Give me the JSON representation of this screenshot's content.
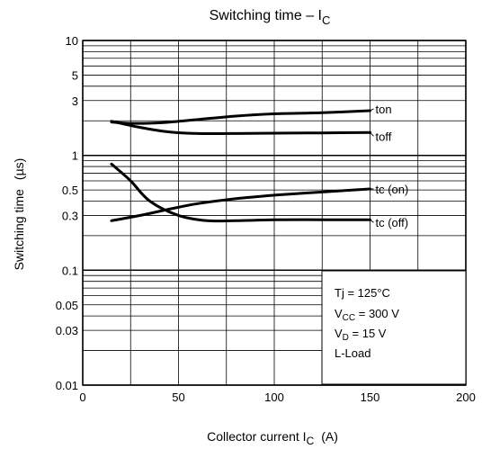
{
  "chart_data": {
    "type": "line",
    "title": {
      "main": "Switching time – I",
      "sub": "C"
    },
    "xlabel": {
      "main": "Collector current   I",
      "sub": "C",
      "unit": "(A)"
    },
    "ylabel": {
      "main": "Switching time",
      "unit": "(µs)"
    },
    "xlim": [
      0,
      200
    ],
    "ylim": [
      0.01,
      10
    ],
    "yscale": "log",
    "grid": true,
    "x_ticks": [
      {
        "value": 0,
        "label": "0"
      },
      {
        "value": 50,
        "label": "50"
      },
      {
        "value": 100,
        "label": "100"
      },
      {
        "value": 150,
        "label": "150"
      },
      {
        "value": 200,
        "label": "200"
      }
    ],
    "y_ticks": [
      {
        "value": 10,
        "label": "10"
      },
      {
        "value": 5,
        "label": "5"
      },
      {
        "value": 3,
        "label": "3"
      },
      {
        "value": 1,
        "label": "1"
      },
      {
        "value": 0.5,
        "label": "0.5"
      },
      {
        "value": 0.3,
        "label": "0.3"
      },
      {
        "value": 0.1,
        "label": "0.1"
      },
      {
        "value": 0.05,
        "label": "0.05"
      },
      {
        "value": 0.03,
        "label": "0.03"
      },
      {
        "value": 0.01,
        "label": "0.01"
      }
    ],
    "series": [
      {
        "name": "ton",
        "x": [
          15,
          25,
          40,
          60,
          80,
          100,
          125,
          150
        ],
        "y": [
          1.95,
          1.9,
          1.92,
          2.05,
          2.2,
          2.3,
          2.35,
          2.45
        ]
      },
      {
        "name": "toff",
        "x": [
          15,
          30,
          45,
          60,
          80,
          100,
          125,
          150
        ],
        "y": [
          1.98,
          1.75,
          1.6,
          1.55,
          1.55,
          1.56,
          1.57,
          1.58
        ]
      },
      {
        "name": "tc (on)",
        "x": [
          15,
          30,
          45,
          60,
          80,
          100,
          125,
          150
        ],
        "y": [
          0.27,
          0.3,
          0.34,
          0.38,
          0.42,
          0.45,
          0.48,
          0.51
        ]
      },
      {
        "name": "tc (off)",
        "x": [
          15,
          25,
          35,
          50,
          65,
          80,
          100,
          125,
          150
        ],
        "y": [
          0.84,
          0.6,
          0.4,
          0.3,
          0.27,
          0.27,
          0.275,
          0.275,
          0.275
        ]
      }
    ],
    "annotation": {
      "lines": [
        {
          "text": "Tj = 125°C"
        },
        {
          "main": "V",
          "sub": "CC",
          "rest": " = 300 V"
        },
        {
          "main": "V",
          "sub": "D",
          "rest": " = 15 V"
        },
        {
          "text": "L-Load"
        }
      ]
    }
  }
}
